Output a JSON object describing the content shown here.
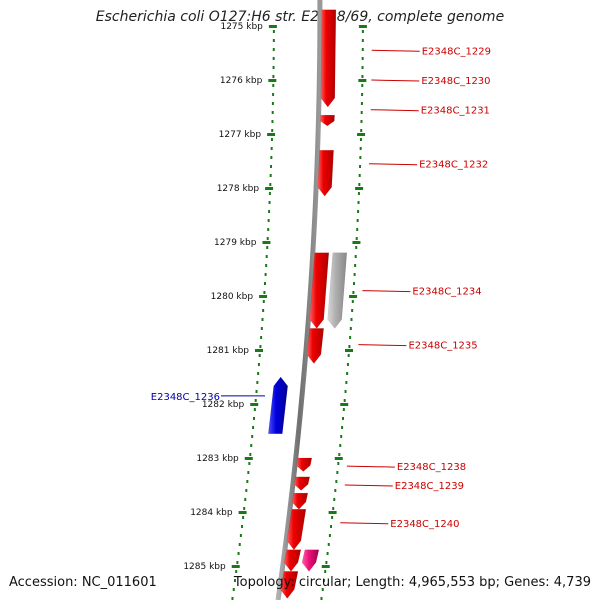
{
  "title": "Escherichia coli O127:H6 str. E2348/69, complete genome",
  "accession_text": "Accession: NC_011601",
  "summary_text": "Topology: circular; Length: 4,965,553 bp; Genes: 4,739",
  "colors": {
    "forward_gene": "#ee0000",
    "reverse_gene": "#0000dd",
    "gray_feature": "#b0b0b0",
    "pink_feature": "#ee1177",
    "backbone": "#808080",
    "ticks": "#1a7a1a",
    "label_red": "#cc0000",
    "label_blue": "#0000aa"
  },
  "kbp_ticks": [
    {
      "kbp": 1275,
      "label": "1275 kbp"
    },
    {
      "kbp": 1276,
      "label": "1276 kbp"
    },
    {
      "kbp": 1277,
      "label": "1277 kbp"
    },
    {
      "kbp": 1278,
      "label": "1278 kbp"
    },
    {
      "kbp": 1279,
      "label": "1279 kbp"
    },
    {
      "kbp": 1280,
      "label": "1280 kbp"
    },
    {
      "kbp": 1281,
      "label": "1281 kbp"
    },
    {
      "kbp": 1282,
      "label": "1282 kbp"
    },
    {
      "kbp": 1283,
      "label": "1283 kbp"
    },
    {
      "kbp": 1284,
      "label": "1284 kbp"
    },
    {
      "kbp": 1285,
      "label": "1285 kbp"
    }
  ],
  "genes": [
    {
      "start": 1274.7,
      "end": 1276.5,
      "strand": "+",
      "kind": "gene"
    },
    {
      "start": 1276.65,
      "end": 1276.85,
      "strand": "+",
      "kind": "gene"
    },
    {
      "start": 1277.3,
      "end": 1278.15,
      "strand": "+",
      "kind": "gene"
    },
    {
      "start": 1279.2,
      "end": 1280.6,
      "strand": "+",
      "kind": "gene"
    },
    {
      "start": 1279.2,
      "end": 1280.6,
      "strand": "+",
      "kind": "gray",
      "outer": true
    },
    {
      "start": 1280.6,
      "end": 1281.25,
      "strand": "+",
      "kind": "gene"
    },
    {
      "start": 1281.5,
      "end": 1282.55,
      "strand": "-",
      "kind": "gene"
    },
    {
      "start": 1283.0,
      "end": 1283.25,
      "strand": "+",
      "kind": "gene"
    },
    {
      "start": 1283.35,
      "end": 1283.6,
      "strand": "+",
      "kind": "gene"
    },
    {
      "start": 1283.65,
      "end": 1283.95,
      "strand": "+",
      "kind": "gene"
    },
    {
      "start": 1283.95,
      "end": 1284.7,
      "strand": "+",
      "kind": "gene"
    },
    {
      "start": 1284.7,
      "end": 1285.1,
      "strand": "+",
      "kind": "gene"
    },
    {
      "start": 1284.7,
      "end": 1285.1,
      "strand": "+",
      "kind": "pink",
      "outer": true
    },
    {
      "start": 1285.1,
      "end": 1285.6,
      "strand": "+",
      "kind": "gene"
    }
  ],
  "gene_labels": [
    {
      "text": "E2348C_1229",
      "kbp": 1275.45,
      "side": "right",
      "color": "label_red"
    },
    {
      "text": "E2348C_1230",
      "kbp": 1276.0,
      "side": "right",
      "color": "label_red"
    },
    {
      "text": "E2348C_1231",
      "kbp": 1276.55,
      "side": "right",
      "color": "label_red"
    },
    {
      "text": "E2348C_1232",
      "kbp": 1277.55,
      "side": "right",
      "color": "label_red"
    },
    {
      "text": "E2348C_1234",
      "kbp": 1279.9,
      "side": "right",
      "color": "label_red"
    },
    {
      "text": "E2348C_1235",
      "kbp": 1280.9,
      "side": "right",
      "color": "label_red"
    },
    {
      "text": "E2348C_1236",
      "kbp": 1281.85,
      "side": "left",
      "color": "label_blue"
    },
    {
      "text": "E2348C_1238",
      "kbp": 1283.15,
      "side": "right",
      "color": "label_red"
    },
    {
      "text": "E2348C_1239",
      "kbp": 1283.5,
      "side": "right",
      "color": "label_red"
    },
    {
      "text": "E2348C_1240",
      "kbp": 1284.2,
      "side": "right",
      "color": "label_red"
    }
  ]
}
